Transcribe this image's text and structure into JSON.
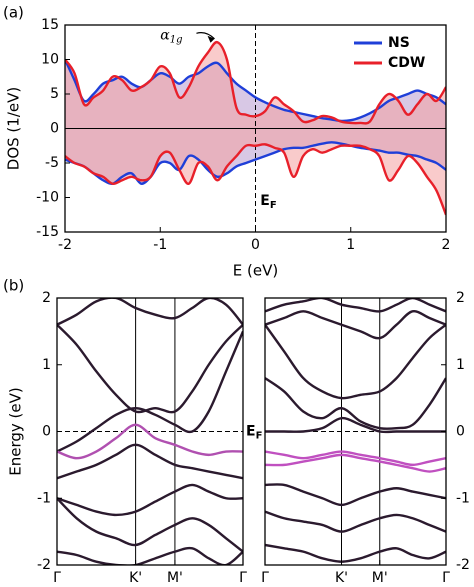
{
  "chart_data": [
    {
      "type": "line",
      "panel_label": "(a)",
      "xlabel": "E (eV)",
      "ylabel": "DOS (1/eV)",
      "xlim": [
        -2,
        2
      ],
      "ylim": [
        -15,
        15
      ],
      "xticks": [
        -2,
        -1,
        0,
        1,
        2
      ],
      "yticks": [
        -15,
        -10,
        -5,
        0,
        5,
        10,
        15
      ],
      "hline": 0,
      "vline": 0,
      "legend": "upper right",
      "annotation": {
        "text": "α",
        "sub": "1g"
      },
      "ef_label": {
        "text": "E",
        "sub": "F"
      },
      "x": [
        -2,
        -1.9,
        -1.8,
        -1.7,
        -1.6,
        -1.5,
        -1.4,
        -1.3,
        -1.2,
        -1.1,
        -1,
        -0.9,
        -0.8,
        -0.7,
        -0.6,
        -0.5,
        -0.4,
        -0.3,
        -0.2,
        -0.1,
        0,
        0.1,
        0.2,
        0.3,
        0.4,
        0.5,
        0.6,
        0.7,
        0.8,
        0.9,
        1,
        1.1,
        1.2,
        1.3,
        1.4,
        1.5,
        1.6,
        1.7,
        1.8,
        1.9,
        2
      ],
      "series": [
        {
          "name": "NS",
          "color": "#1f3fd8",
          "fill": "#b89ad0",
          "values": [
            10,
            7,
            4,
            5,
            6.5,
            7,
            7.5,
            6.5,
            6,
            7,
            8,
            7.5,
            6.5,
            7.5,
            8,
            9,
            9.5,
            8,
            6.5,
            5.5,
            4.5,
            3.8,
            3.2,
            2.7,
            2.4,
            2.1,
            1.8,
            1.5,
            1.3,
            1.1,
            1.2,
            1.6,
            2.2,
            3,
            4,
            4.5,
            5,
            5.5,
            5,
            4.5,
            3.5
          ],
          "values_down": [
            -4.5,
            -5,
            -5.5,
            -6.5,
            -7.5,
            -8,
            -7,
            -6.5,
            -8,
            -7,
            -5,
            -5,
            -6,
            -4,
            -4.5,
            -6,
            -7,
            -6.5,
            -5.5,
            -5,
            -4.5,
            -4,
            -3.5,
            -3,
            -2.8,
            -2.8,
            -2.5,
            -2.2,
            -2,
            -2.2,
            -2.5,
            -2.8,
            -3,
            -3.2,
            -3.5,
            -3.5,
            -3.8,
            -4,
            -4.5,
            -5,
            -6
          ]
        },
        {
          "name": "CDW",
          "color": "#e8202a",
          "fill": "#f4a0a0",
          "values": [
            10,
            8,
            3.5,
            4.5,
            5.5,
            7.5,
            7,
            5.5,
            6,
            7,
            9,
            8,
            4.5,
            6,
            9,
            11,
            12.5,
            10,
            3,
            2,
            1.8,
            2.5,
            4.5,
            3.5,
            2.5,
            1,
            1.2,
            1.8,
            1.6,
            1,
            0.8,
            0.8,
            1,
            3.5,
            5,
            4,
            2,
            3.5,
            5,
            4,
            6
          ],
          "values_down": [
            -4,
            -5,
            -5.5,
            -6.5,
            -7,
            -8,
            -7.5,
            -7,
            -7.5,
            -7,
            -4,
            -3.5,
            -6,
            -8,
            -5,
            -5.5,
            -7.5,
            -5.5,
            -4,
            -2.5,
            -2.5,
            -2.3,
            -2.8,
            -3.5,
            -7,
            -4,
            -3,
            -3.5,
            -3,
            -2.5,
            -2.5,
            -2.5,
            -3,
            -4,
            -7.5,
            -6,
            -4,
            -5,
            -7,
            -9,
            -12.5
          ]
        }
      ]
    },
    {
      "type": "bands",
      "panel_label": "(b)",
      "ylabel": "Energy (eV)",
      "ytick_side": "left",
      "xgrid": true,
      "hline": 0,
      "ef_label": {
        "text": "E",
        "sub": "F"
      },
      "xlim": [
        0,
        2.366
      ],
      "ylim": [
        -2,
        2
      ],
      "yticks": [
        -2,
        -1,
        0,
        1,
        2
      ],
      "xticks": [
        {
          "value": 0,
          "label": "Γ"
        },
        {
          "value": 1,
          "label": "K'"
        },
        {
          "value": 1.5,
          "label": "M'"
        },
        {
          "value": 2.366,
          "label": "Γ"
        }
      ],
      "x": [
        0,
        0.25,
        0.5,
        0.75,
        1,
        1.25,
        1.5,
        1.72,
        1.93,
        2.15,
        2.366
      ],
      "series": [
        {
          "color": "#2b1a2e",
          "values": [
            1.6,
            1.75,
            1.95,
            2,
            1.85,
            1.75,
            1.7,
            1.85,
            2,
            1.9,
            1.6
          ]
        },
        {
          "color": "#2b1a2e",
          "values": [
            1.6,
            1.3,
            0.9,
            0.55,
            0.3,
            0.35,
            0.3,
            0.6,
            1,
            1.35,
            1.6
          ]
        },
        {
          "color": "#2b1a2e",
          "values": [
            -0.3,
            -0.15,
            0.05,
            0.25,
            0.35,
            0.25,
            0.1,
            0,
            0.3,
            0.9,
            1.5
          ]
        },
        {
          "color": "#b050b0",
          "values": [
            -0.3,
            -0.4,
            -0.3,
            -0.1,
            0.1,
            -0.1,
            -0.2,
            -0.3,
            -0.35,
            -0.3,
            -0.3
          ]
        },
        {
          "color": "#2b1a2e",
          "values": [
            -0.7,
            -0.6,
            -0.5,
            -0.35,
            -0.2,
            -0.35,
            -0.5,
            -0.55,
            -0.6,
            -0.65,
            -0.7
          ]
        },
        {
          "color": "#2b1a2e",
          "values": [
            -1,
            -1.1,
            -1.2,
            -1.25,
            -1.2,
            -1.05,
            -0.9,
            -0.8,
            -0.9,
            -1,
            -1
          ]
        },
        {
          "color": "#2b1a2e",
          "values": [
            -1,
            -1.3,
            -1.5,
            -1.6,
            -1.7,
            -1.55,
            -1.4,
            -1.3,
            -1.4,
            -1.6,
            -1.8
          ]
        },
        {
          "color": "#2b1a2e",
          "values": [
            -1.8,
            -1.85,
            -1.95,
            -2,
            -2,
            -1.9,
            -1.8,
            -1.75,
            -1.9,
            -2,
            -1.8
          ]
        }
      ]
    },
    {
      "type": "bands",
      "ytick_side": "right",
      "xgrid": true,
      "hline": 0,
      "xlim": [
        0,
        2.366
      ],
      "ylim": [
        -2,
        2
      ],
      "yticks": [
        -2,
        -1,
        0,
        1,
        2
      ],
      "xticks": [
        {
          "value": 0,
          "label": "Γ"
        },
        {
          "value": 1,
          "label": "K'"
        },
        {
          "value": 1.5,
          "label": "M'"
        },
        {
          "value": 2.366,
          "label": "Γ"
        }
      ],
      "x": [
        0,
        0.25,
        0.5,
        0.75,
        1,
        1.25,
        1.5,
        1.72,
        1.93,
        2.15,
        2.366
      ],
      "series": [
        {
          "color": "#2b1a2e",
          "values": [
            1.8,
            1.9,
            1.95,
            2,
            1.9,
            1.85,
            1.8,
            1.9,
            2,
            1.9,
            1.8
          ]
        },
        {
          "color": "#2b1a2e",
          "values": [
            1.6,
            1.7,
            1.8,
            1.7,
            1.6,
            1.5,
            1.4,
            1.6,
            1.8,
            1.7,
            1.6
          ]
        },
        {
          "color": "#2b1a2e",
          "values": [
            1.6,
            1.2,
            0.8,
            0.6,
            0.5,
            0.55,
            0.6,
            0.8,
            1.1,
            1.4,
            1.6
          ]
        },
        {
          "color": "#2b1a2e",
          "values": [
            0.8,
            0.6,
            0.3,
            0.2,
            0.35,
            0.15,
            0.05,
            0.05,
            0.1,
            0.4,
            0.8
          ]
        },
        {
          "color": "#2b1a2e",
          "values": [
            0,
            0,
            0,
            0.05,
            0.2,
            0.1,
            0,
            0,
            0,
            0,
            0
          ]
        },
        {
          "color": "#c050c0",
          "values": [
            -0.3,
            -0.35,
            -0.4,
            -0.35,
            -0.3,
            -0.35,
            -0.4,
            -0.45,
            -0.5,
            -0.45,
            -0.4
          ]
        },
        {
          "color": "#c050c0",
          "values": [
            -0.5,
            -0.5,
            -0.45,
            -0.4,
            -0.35,
            -0.4,
            -0.45,
            -0.5,
            -0.55,
            -0.6,
            -0.55
          ]
        },
        {
          "color": "#2b1a2e",
          "values": [
            -0.8,
            -0.8,
            -0.9,
            -1,
            -1.1,
            -1,
            -0.9,
            -0.85,
            -0.9,
            -0.95,
            -1
          ]
        },
        {
          "color": "#2b1a2e",
          "values": [
            -1.2,
            -1.3,
            -1.35,
            -1.4,
            -1.5,
            -1.4,
            -1.3,
            -1.25,
            -1.3,
            -1.4,
            -1.5
          ]
        },
        {
          "color": "#2b1a2e",
          "values": [
            -1.7,
            -1.75,
            -1.8,
            -1.9,
            -1.95,
            -1.9,
            -1.8,
            -1.75,
            -1.85,
            -1.9,
            -1.8
          ]
        }
      ]
    }
  ]
}
